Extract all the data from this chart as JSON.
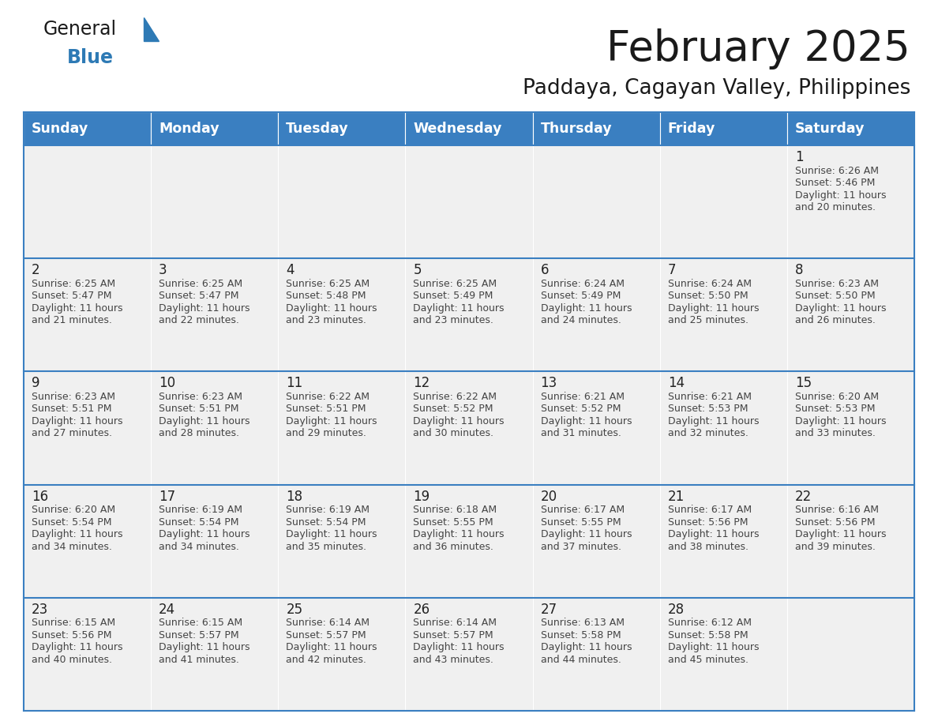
{
  "title": "February 2025",
  "subtitle": "Paddaya, Cagayan Valley, Philippines",
  "days_of_week": [
    "Sunday",
    "Monday",
    "Tuesday",
    "Wednesday",
    "Thursday",
    "Friday",
    "Saturday"
  ],
  "header_bg": "#3A7FC1",
  "header_text": "#FFFFFF",
  "cell_bg": "#F0F0F0",
  "text_color": "#444444",
  "day_num_color": "#222222",
  "line_color": "#3A7FC1",
  "title_color": "#1a1a1a",
  "subtitle_color": "#1a1a1a",
  "border_color": "#CCCCCC",
  "calendar_data": [
    [
      null,
      null,
      null,
      null,
      null,
      null,
      1
    ],
    [
      2,
      3,
      4,
      5,
      6,
      7,
      8
    ],
    [
      9,
      10,
      11,
      12,
      13,
      14,
      15
    ],
    [
      16,
      17,
      18,
      19,
      20,
      21,
      22
    ],
    [
      23,
      24,
      25,
      26,
      27,
      28,
      null
    ]
  ],
  "sunrise": {
    "1": "6:26 AM",
    "2": "6:25 AM",
    "3": "6:25 AM",
    "4": "6:25 AM",
    "5": "6:25 AM",
    "6": "6:24 AM",
    "7": "6:24 AM",
    "8": "6:23 AM",
    "9": "6:23 AM",
    "10": "6:23 AM",
    "11": "6:22 AM",
    "12": "6:22 AM",
    "13": "6:21 AM",
    "14": "6:21 AM",
    "15": "6:20 AM",
    "16": "6:20 AM",
    "17": "6:19 AM",
    "18": "6:19 AM",
    "19": "6:18 AM",
    "20": "6:17 AM",
    "21": "6:17 AM",
    "22": "6:16 AM",
    "23": "6:15 AM",
    "24": "6:15 AM",
    "25": "6:14 AM",
    "26": "6:14 AM",
    "27": "6:13 AM",
    "28": "6:12 AM"
  },
  "sunset": {
    "1": "5:46 PM",
    "2": "5:47 PM",
    "3": "5:47 PM",
    "4": "5:48 PM",
    "5": "5:49 PM",
    "6": "5:49 PM",
    "7": "5:50 PM",
    "8": "5:50 PM",
    "9": "5:51 PM",
    "10": "5:51 PM",
    "11": "5:51 PM",
    "12": "5:52 PM",
    "13": "5:52 PM",
    "14": "5:53 PM",
    "15": "5:53 PM",
    "16": "5:54 PM",
    "17": "5:54 PM",
    "18": "5:54 PM",
    "19": "5:55 PM",
    "20": "5:55 PM",
    "21": "5:56 PM",
    "22": "5:56 PM",
    "23": "5:56 PM",
    "24": "5:57 PM",
    "25": "5:57 PM",
    "26": "5:57 PM",
    "27": "5:58 PM",
    "28": "5:58 PM"
  },
  "daylight_hours": {
    "1": 11,
    "2": 11,
    "3": 11,
    "4": 11,
    "5": 11,
    "6": 11,
    "7": 11,
    "8": 11,
    "9": 11,
    "10": 11,
    "11": 11,
    "12": 11,
    "13": 11,
    "14": 11,
    "15": 11,
    "16": 11,
    "17": 11,
    "18": 11,
    "19": 11,
    "20": 11,
    "21": 11,
    "22": 11,
    "23": 11,
    "24": 11,
    "25": 11,
    "26": 11,
    "27": 11,
    "28": 11
  },
  "daylight_minutes": {
    "1": 20,
    "2": 21,
    "3": 22,
    "4": 23,
    "5": 23,
    "6": 24,
    "7": 25,
    "8": 26,
    "9": 27,
    "10": 28,
    "11": 29,
    "12": 30,
    "13": 31,
    "14": 32,
    "15": 33,
    "16": 34,
    "17": 34,
    "18": 35,
    "19": 36,
    "20": 37,
    "21": 38,
    "22": 39,
    "23": 40,
    "24": 41,
    "25": 42,
    "26": 43,
    "27": 44,
    "28": 45
  },
  "logo_color_general": "#1a1a1a",
  "logo_color_blue": "#2E7AB5",
  "fig_width": 11.88,
  "fig_height": 9.18,
  "dpi": 100
}
